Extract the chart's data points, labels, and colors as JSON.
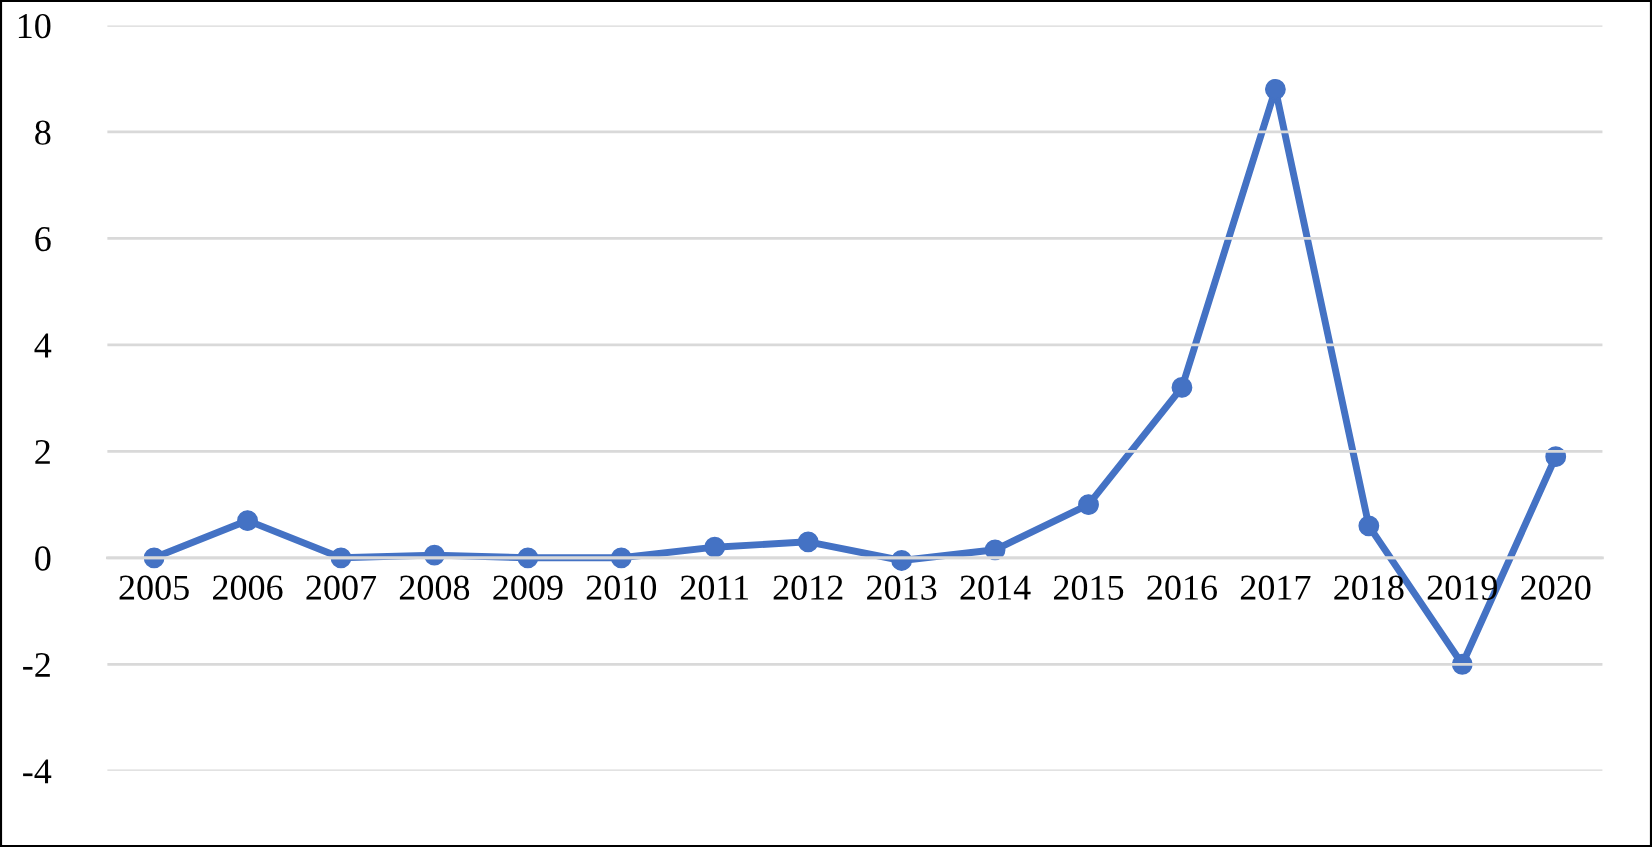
{
  "chart_data": {
    "type": "line",
    "categories": [
      "2005",
      "2006",
      "2007",
      "2008",
      "2009",
      "2010",
      "2011",
      "2012",
      "2013",
      "2014",
      "2015",
      "2016",
      "2017",
      "2018",
      "2019",
      "2020"
    ],
    "series": [
      {
        "color": "#4472c4",
        "values": [
          0,
          0.7,
          0,
          0.05,
          0,
          0,
          0.2,
          0.3,
          -0.05,
          0.15,
          1.0,
          3.2,
          8.8,
          0.6,
          -2.0,
          1.9
        ]
      }
    ],
    "ylim": [
      -4,
      10
    ],
    "yticks": [
      -4,
      -2,
      0,
      2,
      4,
      6,
      8,
      10
    ],
    "grid": "y",
    "marker": "circle",
    "line_style": "solid"
  }
}
